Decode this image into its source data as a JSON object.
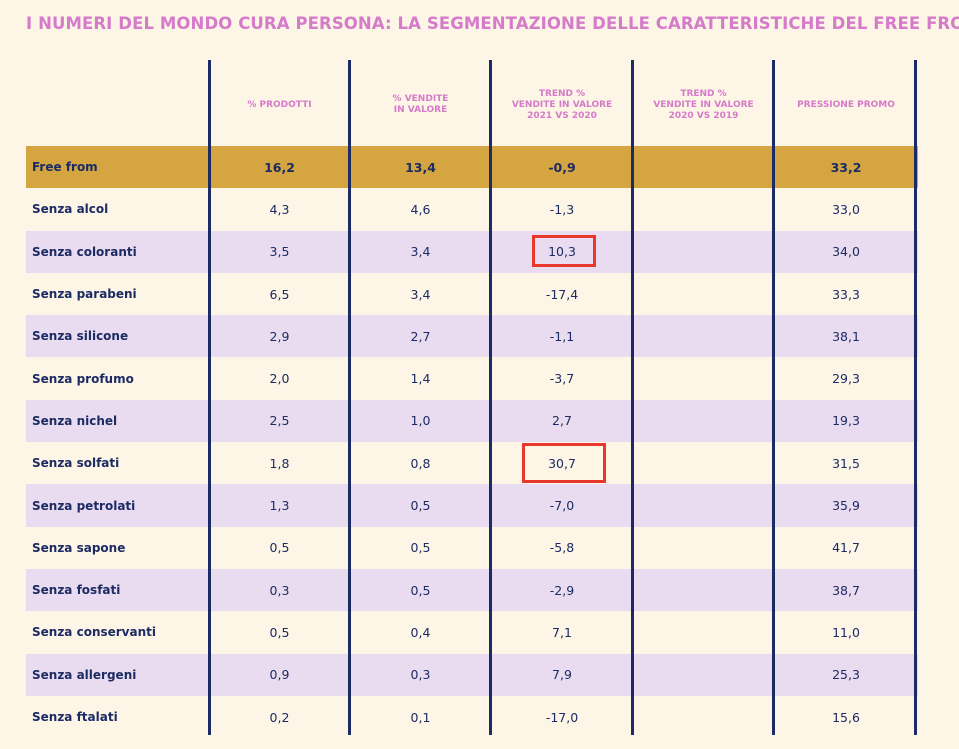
{
  "title": "I NUMERI DEL MONDO CURA PERSONA: LA SEGMENTAZIONE DELLE CARATTERISTICHE DEL FREE FROM",
  "chart_data": {
    "type": "table",
    "columns": [
      "",
      "% PRODOTTI",
      "% VENDITE\nIN VALORE",
      "TREND %\nVENDITE IN VALORE\n2021 VS 2020",
      "TREND %\nVENDITE IN VALORE\n2020 VS 2019",
      "PRESSIONE PROMO"
    ],
    "rows": [
      {
        "label": "Free from",
        "values": [
          "16,2",
          "13,4",
          "-0,9",
          "",
          "33,2"
        ]
      },
      {
        "label": "Senza alcol",
        "values": [
          "4,3",
          "4,6",
          "-1,3",
          "",
          "33,0"
        ]
      },
      {
        "label": "Senza coloranti",
        "values": [
          "3,5",
          "3,4",
          "10,3",
          "",
          "34,0"
        ]
      },
      {
        "label": "Senza parabeni",
        "values": [
          "6,5",
          "3,4",
          "-17,4",
          "",
          "33,3"
        ]
      },
      {
        "label": "Senza silicone",
        "values": [
          "2,9",
          "2,7",
          "-1,1",
          "",
          "38,1"
        ]
      },
      {
        "label": "Senza profumo",
        "values": [
          "2,0",
          "1,4",
          "-3,7",
          "",
          "29,3"
        ]
      },
      {
        "label": "Senza nichel",
        "values": [
          "2,5",
          "1,0",
          "2,7",
          "",
          "19,3"
        ]
      },
      {
        "label": "Senza solfati",
        "values": [
          "1,8",
          "0,8",
          "30,7",
          "",
          "31,5"
        ]
      },
      {
        "label": "Senza petrolati",
        "values": [
          "1,3",
          "0,5",
          "-7,0",
          "",
          "35,9"
        ]
      },
      {
        "label": "Senza sapone",
        "values": [
          "0,5",
          "0,5",
          "-5,8",
          "",
          "41,7"
        ]
      },
      {
        "label": "Senza fosfati",
        "values": [
          "0,3",
          "0,5",
          "-2,9",
          "",
          "38,7"
        ]
      },
      {
        "label": "Senza conservanti",
        "values": [
          "0,5",
          "0,4",
          "7,1",
          "",
          "11,0"
        ]
      },
      {
        "label": "Senza allergeni",
        "values": [
          "0,9",
          "0,3",
          "7,9",
          "",
          "25,3"
        ]
      },
      {
        "label": "Senza ftalati",
        "values": [
          "0,2",
          "0,1",
          "-17,0",
          "",
          "15,6"
        ]
      }
    ],
    "highlighted_cells": [
      {
        "row": "Senza coloranti",
        "column": "TREND %\nVENDITE IN VALORE\n2021 VS 2020"
      },
      {
        "row": "Senza solfati",
        "column": "TREND %\nVENDITE IN VALORE\n2021 VS 2020"
      }
    ],
    "colors": {
      "background": "#fdf5e6",
      "title": "#d57bc9",
      "header_text": "#d57bc9",
      "text": "#1c2b63",
      "total_row": "#d4a540",
      "alt_row": "#eadcf0",
      "highlight": "#e8372c"
    }
  }
}
